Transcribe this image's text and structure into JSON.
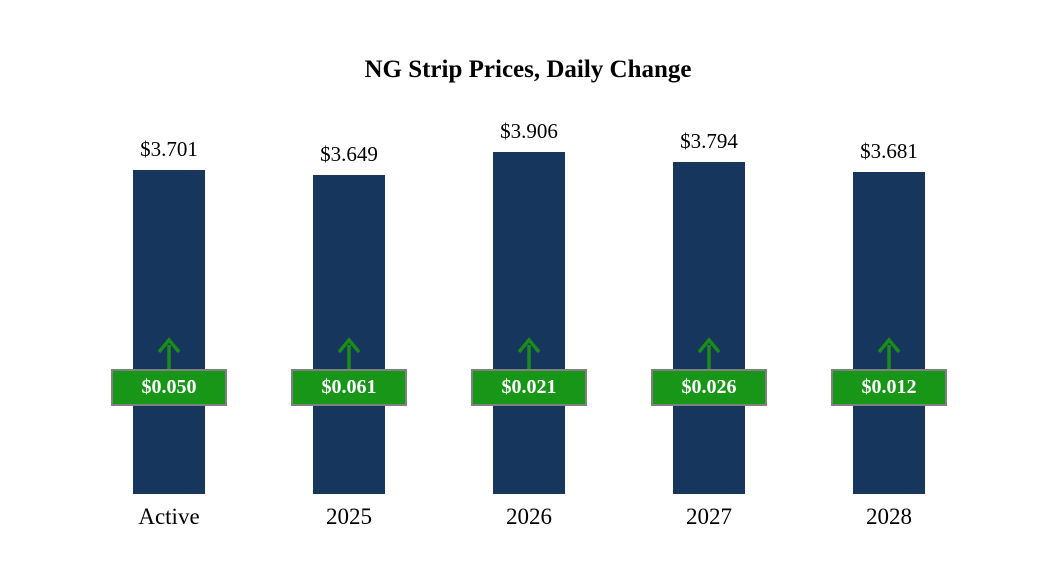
{
  "chart_data": {
    "type": "bar",
    "title": "NG Strip Prices, Daily Change",
    "categories": [
      "Active",
      "2025",
      "2026",
      "2027",
      "2028"
    ],
    "series": [
      {
        "name": "Strip Price",
        "values": [
          3.701,
          3.649,
          3.906,
          3.794,
          3.681
        ]
      },
      {
        "name": "Daily Change",
        "values": [
          0.05,
          0.061,
          0.021,
          0.026,
          0.012
        ]
      }
    ],
    "price_labels": [
      "$3.701",
      "$3.649",
      "$3.906",
      "$3.794",
      "$3.681"
    ],
    "change_labels": [
      "$0.050",
      "$0.061",
      "$0.021",
      "$0.026",
      "$0.012"
    ],
    "ylim": [
      0,
      4
    ],
    "legend": "none",
    "grid": false,
    "colors": {
      "bar": "#17365d",
      "change_badge": "#189618",
      "badge_border": "#808080",
      "badge_text": "#ffffff",
      "arrow": "#1a8c1a"
    }
  }
}
